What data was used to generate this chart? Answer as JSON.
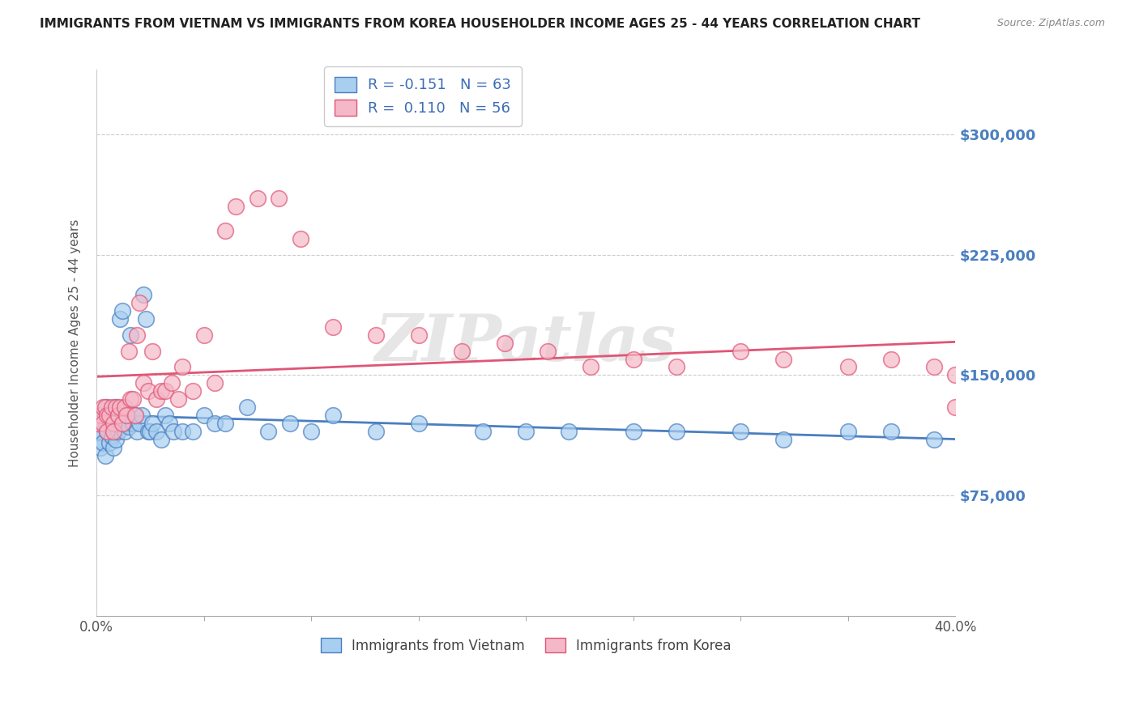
{
  "title": "IMMIGRANTS FROM VIETNAM VS IMMIGRANTS FROM KOREA HOUSEHOLDER INCOME AGES 25 - 44 YEARS CORRELATION CHART",
  "source": "Source: ZipAtlas.com",
  "ylabel": "Householder Income Ages 25 - 44 years",
  "right_yticks": [
    75000,
    150000,
    225000,
    300000
  ],
  "right_yticklabels": [
    "$75,000",
    "$150,000",
    "$225,000",
    "$300,000"
  ],
  "xlim": [
    0.0,
    0.4
  ],
  "ylim": [
    0,
    340000
  ],
  "vietnam_R": "-0.151",
  "vietnam_N": "63",
  "korea_R": "0.110",
  "korea_N": "56",
  "vietnam_color": "#a8cff0",
  "korea_color": "#f5b8c8",
  "trend_vietnam_color": "#4a7ec0",
  "trend_korea_color": "#e05575",
  "legend_text_color": "#3d6db5",
  "watermark": "ZIPatlas",
  "vietnam_x": [
    0.001,
    0.001,
    0.002,
    0.002,
    0.003,
    0.003,
    0.004,
    0.004,
    0.005,
    0.005,
    0.006,
    0.006,
    0.007,
    0.007,
    0.008,
    0.008,
    0.009,
    0.009,
    0.01,
    0.01,
    0.011,
    0.012,
    0.013,
    0.014,
    0.015,
    0.016,
    0.017,
    0.018,
    0.019,
    0.02,
    0.021,
    0.022,
    0.023,
    0.024,
    0.025,
    0.026,
    0.028,
    0.03,
    0.032,
    0.034,
    0.036,
    0.04,
    0.045,
    0.05,
    0.055,
    0.06,
    0.07,
    0.08,
    0.09,
    0.1,
    0.11,
    0.13,
    0.15,
    0.18,
    0.2,
    0.22,
    0.25,
    0.27,
    0.3,
    0.32,
    0.35,
    0.37,
    0.39
  ],
  "vietnam_y": [
    120000,
    110000,
    115000,
    105000,
    125000,
    108000,
    120000,
    100000,
    130000,
    115000,
    125000,
    108000,
    120000,
    112000,
    118000,
    105000,
    130000,
    110000,
    125000,
    115000,
    185000,
    190000,
    115000,
    120000,
    118000,
    175000,
    120000,
    125000,
    115000,
    120000,
    125000,
    200000,
    185000,
    115000,
    115000,
    120000,
    115000,
    110000,
    125000,
    120000,
    115000,
    115000,
    115000,
    125000,
    120000,
    120000,
    130000,
    115000,
    120000,
    115000,
    125000,
    115000,
    120000,
    115000,
    115000,
    115000,
    115000,
    115000,
    115000,
    110000,
    115000,
    115000,
    110000
  ],
  "korea_x": [
    0.001,
    0.002,
    0.003,
    0.003,
    0.004,
    0.005,
    0.005,
    0.006,
    0.007,
    0.008,
    0.008,
    0.009,
    0.01,
    0.011,
    0.012,
    0.013,
    0.014,
    0.015,
    0.016,
    0.017,
    0.018,
    0.019,
    0.02,
    0.022,
    0.024,
    0.026,
    0.028,
    0.03,
    0.032,
    0.035,
    0.038,
    0.04,
    0.045,
    0.05,
    0.055,
    0.06,
    0.065,
    0.075,
    0.085,
    0.095,
    0.11,
    0.13,
    0.15,
    0.17,
    0.19,
    0.21,
    0.23,
    0.25,
    0.27,
    0.3,
    0.32,
    0.35,
    0.37,
    0.39,
    0.4,
    0.4
  ],
  "korea_y": [
    120000,
    125000,
    130000,
    120000,
    130000,
    125000,
    115000,
    125000,
    130000,
    120000,
    115000,
    130000,
    125000,
    130000,
    120000,
    130000,
    125000,
    165000,
    135000,
    135000,
    125000,
    175000,
    195000,
    145000,
    140000,
    165000,
    135000,
    140000,
    140000,
    145000,
    135000,
    155000,
    140000,
    175000,
    145000,
    240000,
    255000,
    260000,
    260000,
    235000,
    180000,
    175000,
    175000,
    165000,
    170000,
    165000,
    155000,
    160000,
    155000,
    165000,
    160000,
    155000,
    160000,
    155000,
    150000,
    130000
  ]
}
